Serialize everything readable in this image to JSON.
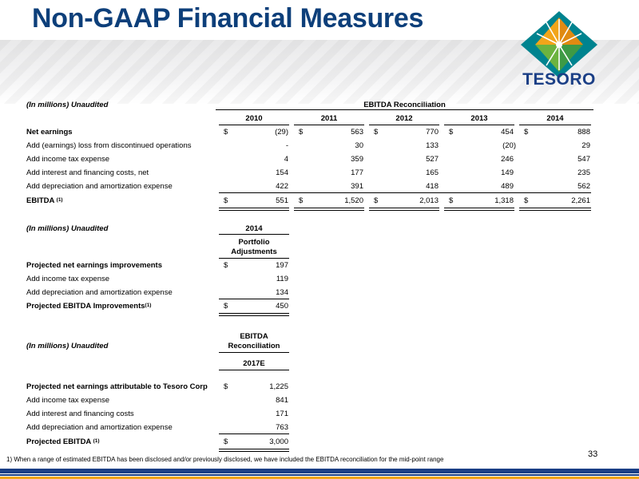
{
  "title": "Non-GAAP Financial Measures",
  "logo": {
    "word": "TESORO"
  },
  "table1": {
    "unit_note": "(In millions) Unaudited",
    "section_title": "EBITDA Reconciliation",
    "years": [
      "2010",
      "2011",
      "2012",
      "2013",
      "2014"
    ],
    "rows": [
      {
        "label": "Net earnings",
        "values": [
          "(29)",
          "563",
          "770",
          "454",
          "888"
        ]
      },
      {
        "label": "Add (earnings) loss from discontinued operations",
        "values": [
          "-",
          "30",
          "133",
          "(20)",
          "29"
        ]
      },
      {
        "label": "Add income tax expense",
        "values": [
          "4",
          "359",
          "527",
          "246",
          "547"
        ]
      },
      {
        "label": "Add interest and financing costs, net",
        "values": [
          "154",
          "177",
          "165",
          "149",
          "235"
        ]
      },
      {
        "label": "Add depreciation and amortization expense",
        "values": [
          "422",
          "391",
          "418",
          "489",
          "562"
        ]
      }
    ],
    "total": {
      "label": "EBITDA",
      "sup": "(1)",
      "values": [
        "551",
        "1,520",
        "2,013",
        "1,318",
        "2,261"
      ]
    },
    "currency": "$"
  },
  "table2": {
    "unit_note": "(In millions) Unaudited",
    "year": "2014",
    "col_header_line1": "Portfolio",
    "col_header_line2": "Adjustments",
    "rows": [
      {
        "label": "Projected net earnings improvements",
        "value": "197"
      },
      {
        "label": "Add income tax expense",
        "value": "119"
      },
      {
        "label": "Add depreciation and amortization expense",
        "value": "134"
      }
    ],
    "total": {
      "label": "Projected EBITDA Improvements",
      "sup": "(1)",
      "value": "450"
    },
    "currency": "$"
  },
  "table3": {
    "unit_note": "(In millions) Unaudited",
    "header_line1": "EBITDA",
    "header_line2": "Reconciliation",
    "year": "2017E",
    "rows": [
      {
        "label": "Projected net earnings attributable to Tesoro Corp",
        "value": "1,225"
      },
      {
        "label": "Add income tax expense",
        "value": "841"
      },
      {
        "label": "Add interest and financing costs",
        "value": "171"
      },
      {
        "label": "Add depreciation and amortization expense",
        "value": "763"
      }
    ],
    "total": {
      "label": "Projected EBITDA",
      "sup": "(1)",
      "value": "3,000"
    },
    "currency": "$"
  },
  "footnote": "1) When a range of estimated EBITDA has been disclosed and/or previously disclosed, we have included the EBITDA reconciliation for the mid-point range",
  "page_number": "33",
  "colors": {
    "title": "#0d3f7a",
    "brand_blue": "#1b3f86",
    "brand_gold": "#f2a51a",
    "logo_teal": "#00838f",
    "logo_green": "#6cb33f"
  }
}
